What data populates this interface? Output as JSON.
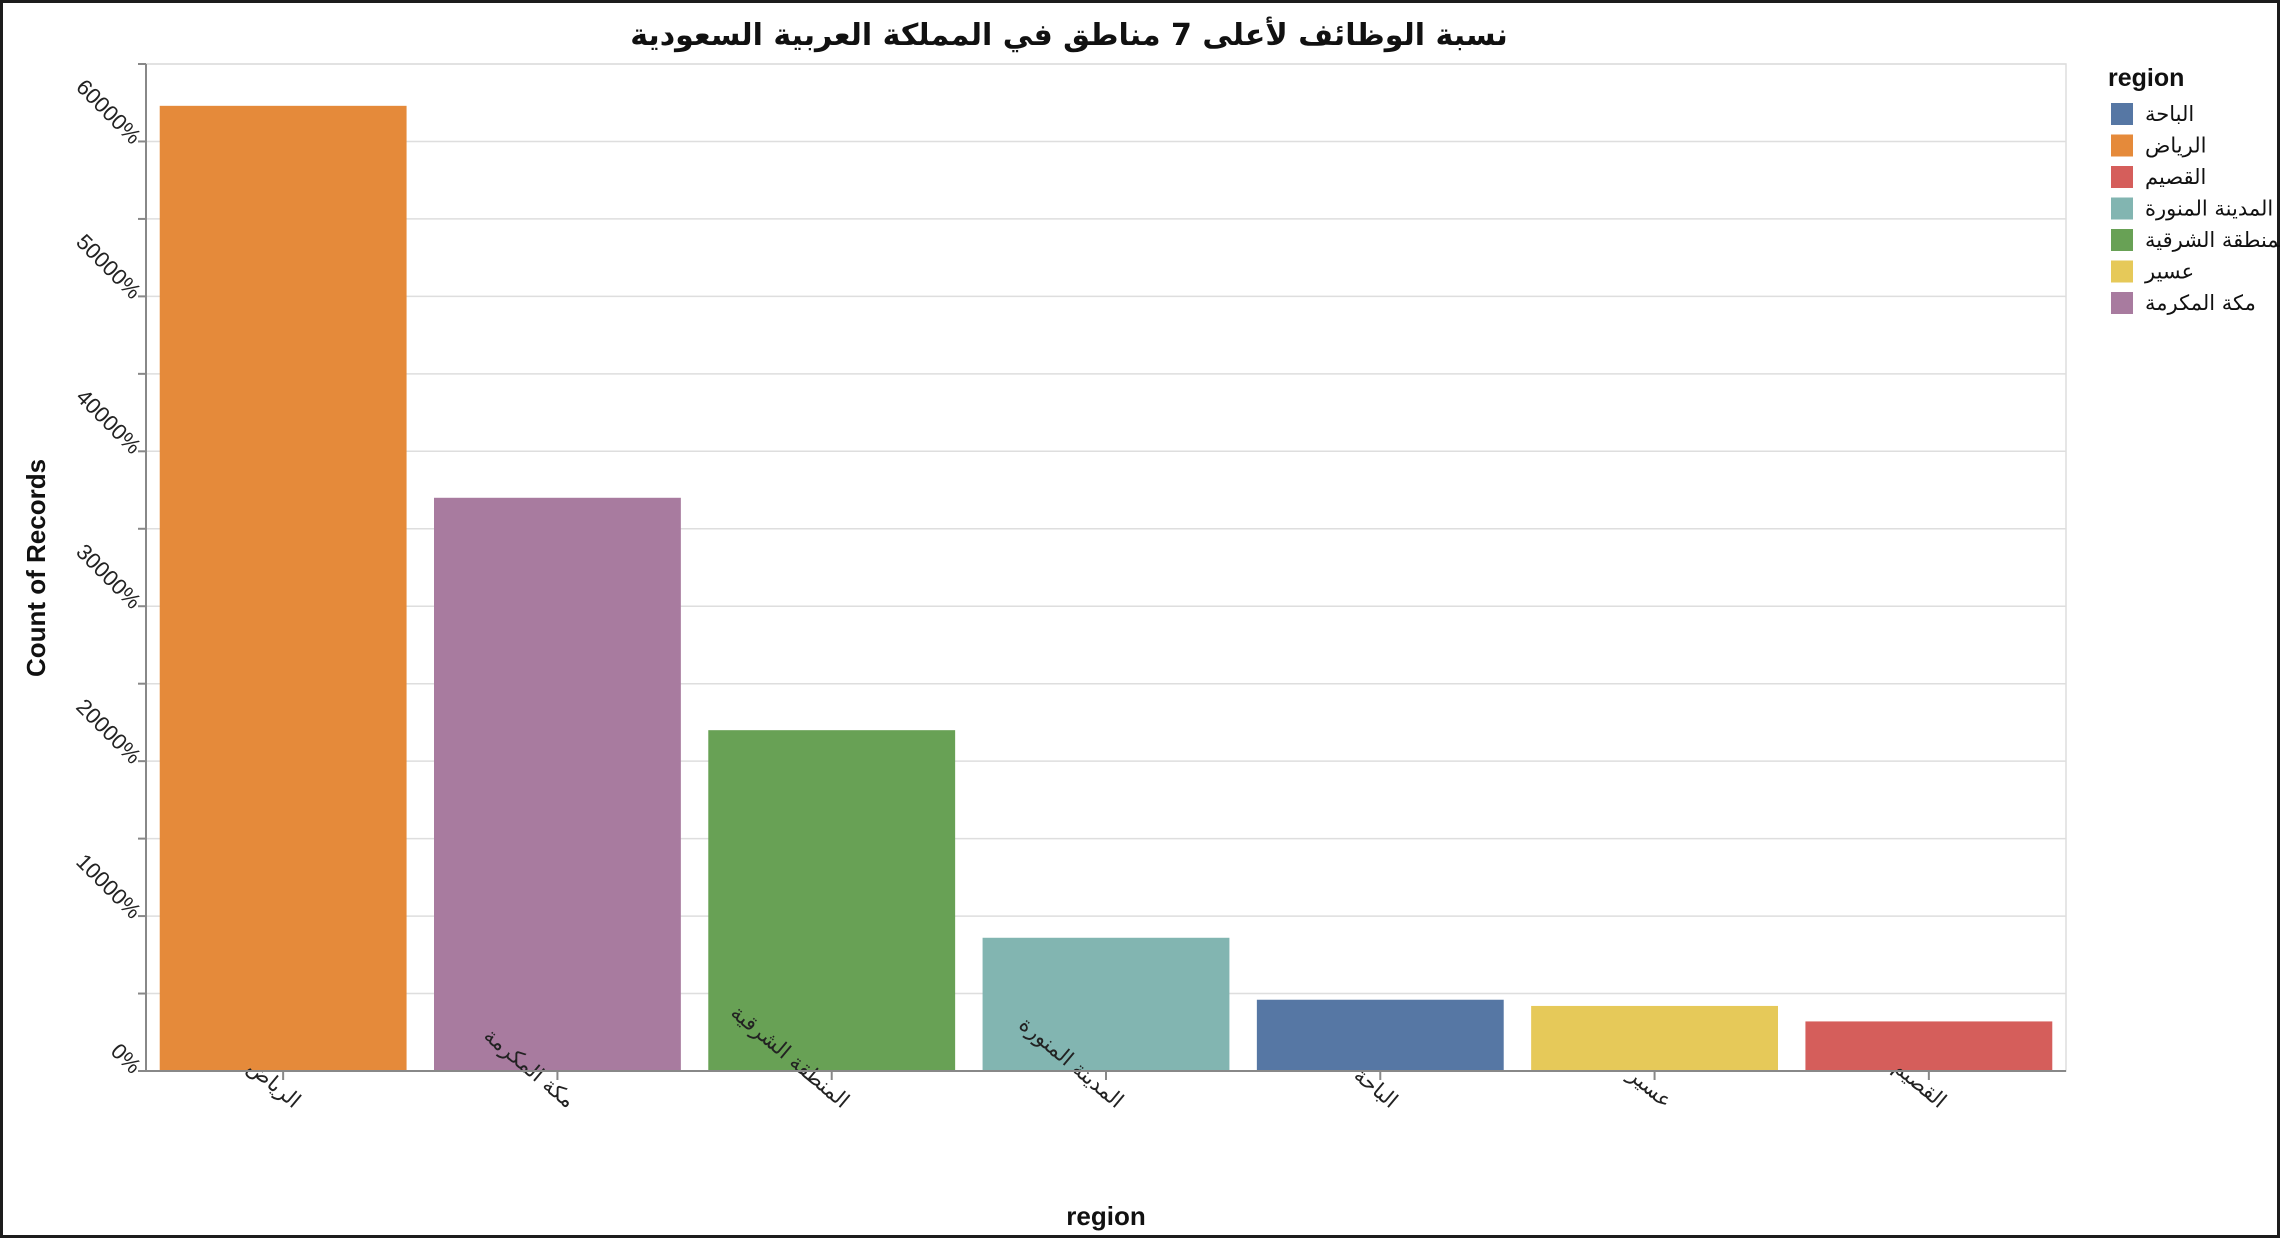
{
  "chart_data": {
    "type": "bar",
    "title": "نسبة الوظائف لأعلى 7 مناطق في المملكة العربية السعودية",
    "xlabel": "region",
    "ylabel": "Count of Records",
    "ylim": [
      0,
      65000
    ],
    "y_tick_values": [
      0,
      10000,
      20000,
      30000,
      40000,
      50000,
      60000
    ],
    "y_tick_labels": [
      "0%",
      "10000%",
      "20000%",
      "30000%",
      "40000%",
      "50000%",
      "60000%"
    ],
    "categories": [
      "الرياض",
      "مكة المكرمة",
      "المنطقة الشرقية",
      "المدينة المنورة",
      "الباحة",
      "عسير",
      "القصيم"
    ],
    "values": [
      62300,
      37000,
      22000,
      8600,
      4600,
      4200,
      3200
    ],
    "colors": [
      "#e58a3a",
      "#a87b9f",
      "#68a155",
      "#82b5b1",
      "#5677a4",
      "#e6c959",
      "#d55e5b"
    ],
    "grid": true,
    "legend": {
      "title": "region",
      "position": "top-right",
      "items": [
        {
          "label": "الباحة",
          "color": "#5677a4"
        },
        {
          "label": "الرياض",
          "color": "#e58a3a"
        },
        {
          "label": "القصيم",
          "color": "#d55e5b"
        },
        {
          "label": "المدينة المنورة",
          "color": "#82b5b1"
        },
        {
          "label": "المنطقة الشرقية",
          "color": "#68a155"
        },
        {
          "label": "عسير",
          "color": "#e6c959"
        },
        {
          "label": "مكة المكرمة",
          "color": "#a87b9f"
        }
      ]
    }
  }
}
